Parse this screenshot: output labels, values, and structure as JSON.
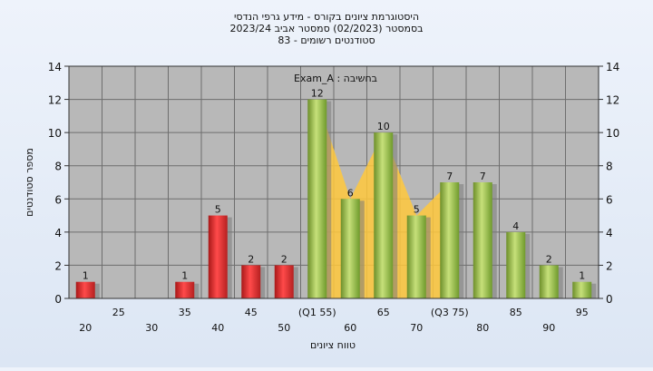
{
  "chart_data": {
    "type": "bar",
    "title": [
      "היסטוגרמת ציונים בקורס - מידע גרפי הנדסי",
      "בסמסטר  (02/2023)  סמסטר אביב 2023/24",
      "83 - סטודנטים רשומים"
    ],
    "annotation": "Exam_A : בחשיבה",
    "xlabel": "טווח ציונים",
    "ylabel": "מספר סטודנטים",
    "ylim": [
      0,
      14
    ],
    "yticks": [
      0,
      2,
      4,
      6,
      8,
      10,
      12,
      14
    ],
    "categories": [
      "20",
      "25",
      "30",
      "35",
      "40",
      "45",
      "50",
      "55",
      "60",
      "65",
      "70",
      "75",
      "80",
      "85",
      "90",
      "95"
    ],
    "tick_labels": [
      "20",
      "25",
      "30",
      "35",
      "40",
      "45",
      "50",
      "(Q1 55)",
      "60",
      "65",
      "70",
      "(Q3 75)",
      "80",
      "85",
      "90",
      "95"
    ],
    "values": [
      1,
      0,
      0,
      1,
      5,
      2,
      2,
      12,
      6,
      10,
      5,
      7,
      7,
      4,
      2,
      1
    ],
    "pass_threshold": 55,
    "colors": {
      "fail": "#e03030",
      "pass": "#8ab43e",
      "iqr_band": "#ffc83c",
      "plot_bg": "#b8b8b8",
      "grid": "#6e6e6e"
    },
    "grid": true
  }
}
